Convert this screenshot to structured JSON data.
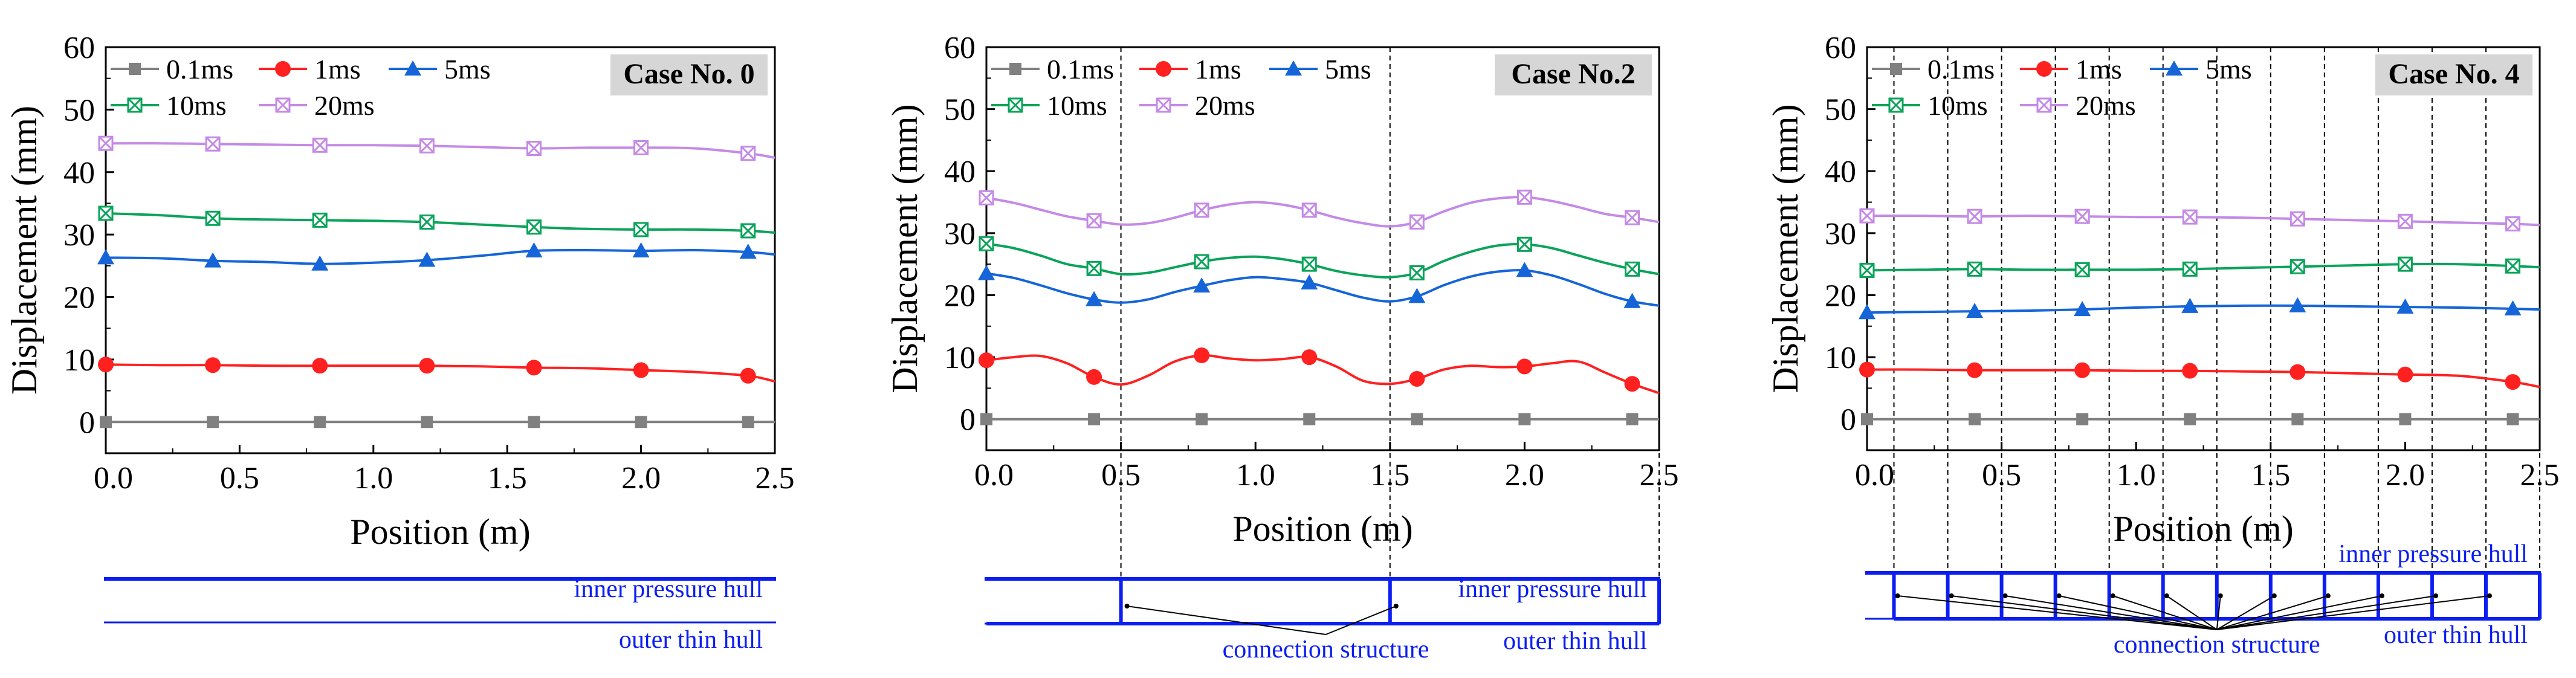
{
  "colors": {
    "s01": "#808080",
    "s1": "#ff2020",
    "s5": "#1565d8",
    "s10": "#0aa35a",
    "s20": "#c48ae6",
    "hull": "#0b1ef2",
    "boxfill": "#d6d6d6",
    "axis": "#000000"
  },
  "chart_data": [
    {
      "type": "line",
      "title": "Case No. 0",
      "xlabel": "Position (m)",
      "ylabel": "Displacement (mm)",
      "xlim": [
        0,
        2.5
      ],
      "ylim": [
        -5,
        60
      ],
      "xticks": [
        "0.0",
        "0.5",
        "1.0",
        "1.5",
        "2.0",
        "2.5"
      ],
      "yticks": [
        "0",
        "10",
        "20",
        "30",
        "40",
        "50",
        "60"
      ],
      "marker_x": [
        0,
        0.4,
        0.8,
        1.2,
        1.6,
        2.0,
        2.4
      ],
      "curve_x": [
        0,
        0.2,
        0.4,
        0.6,
        0.8,
        1.0,
        1.2,
        1.4,
        1.6,
        1.8,
        2.0,
        2.2,
        2.4,
        2.5
      ],
      "series": [
        {
          "name": "0.1ms",
          "color_key": "s01",
          "marker": "square",
          "markers": [
            0,
            0,
            0,
            0,
            0,
            0,
            0
          ],
          "curve": [
            0,
            0,
            0,
            0,
            0,
            0,
            0,
            0,
            0,
            0,
            0,
            0,
            0,
            0
          ]
        },
        {
          "name": "1ms",
          "color_key": "s1",
          "marker": "circle",
          "markers": [
            9.2,
            9.1,
            9.0,
            9.0,
            8.7,
            8.3,
            7.4
          ],
          "curve": [
            9.2,
            9.1,
            9.1,
            9.0,
            9.0,
            9.0,
            9.0,
            8.9,
            8.7,
            8.6,
            8.3,
            8.0,
            7.4,
            6.5
          ]
        },
        {
          "name": "5ms",
          "color_key": "s5",
          "marker": "triangle",
          "markers": [
            26.3,
            25.8,
            25.3,
            25.9,
            27.4,
            27.4,
            27.2
          ],
          "curve": [
            26.3,
            26.2,
            25.8,
            25.6,
            25.3,
            25.5,
            25.9,
            26.6,
            27.4,
            27.5,
            27.4,
            27.5,
            27.2,
            26.8
          ]
        },
        {
          "name": "10ms",
          "color_key": "s10",
          "marker": "boxcross",
          "markers": [
            33.4,
            32.6,
            32.3,
            32.0,
            31.2,
            30.8,
            30.6
          ],
          "curve": [
            33.4,
            33.1,
            32.6,
            32.4,
            32.3,
            32.2,
            32.0,
            31.6,
            31.2,
            30.9,
            30.8,
            30.8,
            30.6,
            30.3
          ]
        },
        {
          "name": "20ms",
          "color_key": "s20",
          "marker": "boxcross",
          "markers": [
            44.6,
            44.5,
            44.3,
            44.2,
            43.8,
            43.9,
            43.0
          ],
          "curve": [
            44.6,
            44.6,
            44.5,
            44.4,
            44.3,
            44.3,
            44.2,
            44.0,
            43.8,
            43.9,
            43.9,
            43.8,
            43.0,
            42.3
          ]
        }
      ],
      "divisions": [],
      "hull": {
        "inner_label": "inner pressure hull",
        "outer_label": "outer thin hull",
        "connection_label": "",
        "x_from": 0,
        "x_to": 2.5,
        "supports": []
      }
    },
    {
      "type": "line",
      "title": "Case No.2",
      "xlabel": "Position (m)",
      "ylabel": "Displacement (mm)",
      "xlim": [
        0,
        2.5
      ],
      "ylim": [
        -5,
        60
      ],
      "xticks": [
        "0.0",
        "0.5",
        "1.0",
        "1.5",
        "2.0",
        "2.5"
      ],
      "yticks": [
        "0",
        "10",
        "20",
        "30",
        "40",
        "50",
        "60"
      ],
      "marker_x": [
        0,
        0.4,
        0.8,
        1.2,
        1.6,
        2.0,
        2.4
      ],
      "curve_x": [
        0,
        0.1,
        0.2,
        0.3,
        0.4,
        0.5,
        0.6,
        0.7,
        0.8,
        0.9,
        1.0,
        1.1,
        1.2,
        1.3,
        1.4,
        1.5,
        1.6,
        1.7,
        1.8,
        1.9,
        2.0,
        2.1,
        2.2,
        2.3,
        2.4,
        2.5
      ],
      "series": [
        {
          "name": "0.1ms",
          "color_key": "s01",
          "marker": "square",
          "markers": [
            0,
            0,
            0,
            0,
            0,
            0,
            0
          ],
          "curve": [
            0,
            0,
            0,
            0,
            0,
            0,
            0,
            0,
            0,
            0,
            0,
            0,
            0,
            0,
            0,
            0,
            0,
            0,
            0,
            0,
            0,
            0,
            0,
            0,
            0,
            0
          ]
        },
        {
          "name": "1ms",
          "color_key": "s1",
          "marker": "circle",
          "markers": [
            9.5,
            6.8,
            10.3,
            10.0,
            6.5,
            8.5,
            5.7
          ],
          "curve": [
            9.5,
            10.0,
            10.2,
            9.0,
            6.8,
            5.6,
            7.0,
            9.3,
            10.3,
            9.8,
            9.5,
            9.7,
            10.0,
            8.5,
            6.2,
            5.7,
            6.5,
            8.0,
            8.6,
            8.4,
            8.5,
            9.0,
            9.3,
            7.5,
            5.7,
            4.2
          ]
        },
        {
          "name": "5ms",
          "color_key": "s5",
          "marker": "triangle",
          "markers": [
            23.5,
            19.3,
            21.5,
            22.0,
            19.8,
            24.0,
            19.0
          ],
          "curve": [
            23.5,
            22.8,
            21.6,
            20.3,
            19.3,
            18.8,
            19.3,
            20.5,
            21.5,
            22.4,
            22.9,
            22.6,
            22.0,
            20.8,
            19.6,
            19.0,
            19.8,
            21.6,
            23.0,
            23.8,
            24.0,
            23.2,
            21.8,
            20.2,
            19.0,
            18.3
          ]
        },
        {
          "name": "10ms",
          "color_key": "s10",
          "marker": "boxcross",
          "markers": [
            28.3,
            24.3,
            25.4,
            25.0,
            23.6,
            28.2,
            24.2
          ],
          "curve": [
            28.3,
            27.6,
            26.4,
            25.0,
            24.3,
            23.4,
            23.6,
            24.5,
            25.4,
            26.0,
            26.2,
            25.8,
            25.0,
            23.9,
            23.2,
            22.9,
            23.6,
            25.5,
            27.0,
            28.0,
            28.2,
            27.6,
            26.4,
            25.2,
            24.2,
            23.4
          ]
        },
        {
          "name": "20ms",
          "color_key": "s20",
          "marker": "boxcross",
          "markers": [
            35.7,
            32.0,
            33.7,
            33.7,
            31.8,
            35.8,
            32.5
          ],
          "curve": [
            35.7,
            34.9,
            33.8,
            32.7,
            32.0,
            31.4,
            31.6,
            32.5,
            33.7,
            34.6,
            35.0,
            34.6,
            33.7,
            32.5,
            31.6,
            31.1,
            31.8,
            33.5,
            34.9,
            35.6,
            35.8,
            35.2,
            34.2,
            33.1,
            32.5,
            31.8
          ]
        }
      ],
      "divisions": [
        0.5,
        1.5,
        2.5
      ],
      "hull": {
        "inner_label": "inner pressure hull",
        "outer_label": "outer thin hull",
        "connection_label": "connection structure",
        "x_from": 0,
        "x_to": 2.5,
        "supports": [
          0.5,
          1.5,
          2.5
        ]
      }
    },
    {
      "type": "line",
      "title": "Case No. 4",
      "xlabel": "Position (m)",
      "ylabel": "Displacement (mm)",
      "xlim": [
        0,
        2.5
      ],
      "ylim": [
        -5,
        60
      ],
      "xticks": [
        "0.0",
        "0.5",
        "1.0",
        "1.5",
        "2.0",
        "2.5"
      ],
      "yticks": [
        "0",
        "10",
        "20",
        "30",
        "40",
        "50",
        "60"
      ],
      "marker_x": [
        0,
        0.4,
        0.8,
        1.2,
        1.6,
        2.0,
        2.4
      ],
      "curve_x": [
        0,
        0.2,
        0.4,
        0.6,
        0.8,
        1.0,
        1.2,
        1.4,
        1.6,
        1.8,
        2.0,
        2.2,
        2.4,
        2.5
      ],
      "series": [
        {
          "name": "0.1ms",
          "color_key": "s01",
          "marker": "square",
          "markers": [
            0,
            0,
            0,
            0,
            0,
            0,
            0
          ],
          "curve": [
            0,
            0,
            0,
            0,
            0,
            0,
            0,
            0,
            0,
            0,
            0,
            0,
            0,
            0
          ]
        },
        {
          "name": "1ms",
          "color_key": "s1",
          "marker": "circle",
          "markers": [
            8.0,
            7.9,
            7.9,
            7.8,
            7.6,
            7.2,
            6.0
          ],
          "curve": [
            8.0,
            8.0,
            7.9,
            7.9,
            7.9,
            7.8,
            7.8,
            7.7,
            7.6,
            7.4,
            7.2,
            7.0,
            6.0,
            5.2
          ]
        },
        {
          "name": "5ms",
          "color_key": "s5",
          "marker": "triangle",
          "markers": [
            17.2,
            17.4,
            17.7,
            18.2,
            18.3,
            18.1,
            17.8
          ],
          "curve": [
            17.2,
            17.3,
            17.4,
            17.5,
            17.7,
            18.0,
            18.2,
            18.3,
            18.3,
            18.2,
            18.1,
            18.0,
            17.8,
            17.7
          ]
        },
        {
          "name": "10ms",
          "color_key": "s10",
          "marker": "boxcross",
          "markers": [
            24.0,
            24.2,
            24.1,
            24.2,
            24.6,
            25.0,
            24.7
          ],
          "curve": [
            24.0,
            24.1,
            24.2,
            24.1,
            24.1,
            24.1,
            24.2,
            24.4,
            24.6,
            24.8,
            25.0,
            25.0,
            24.7,
            24.5
          ]
        },
        {
          "name": "20ms",
          "color_key": "s20",
          "marker": "boxcross",
          "markers": [
            32.8,
            32.7,
            32.7,
            32.6,
            32.3,
            31.9,
            31.5
          ],
          "curve": [
            32.8,
            32.8,
            32.7,
            32.8,
            32.7,
            32.6,
            32.6,
            32.5,
            32.3,
            32.1,
            31.9,
            31.7,
            31.5,
            31.3
          ]
        }
      ],
      "divisions": [
        0.1,
        0.3,
        0.5,
        0.7,
        0.9,
        1.1,
        1.3,
        1.5,
        1.7,
        1.9,
        2.1,
        2.3,
        2.5
      ],
      "hull": {
        "inner_label": "inner pressure hull",
        "outer_label": "outer thin hull",
        "connection_label": "connection structure",
        "x_from": 0.1,
        "x_to": 2.5,
        "supports": [
          0.1,
          0.3,
          0.5,
          0.7,
          0.9,
          1.1,
          1.3,
          1.5,
          1.7,
          1.9,
          2.1,
          2.3,
          2.5
        ]
      }
    }
  ]
}
